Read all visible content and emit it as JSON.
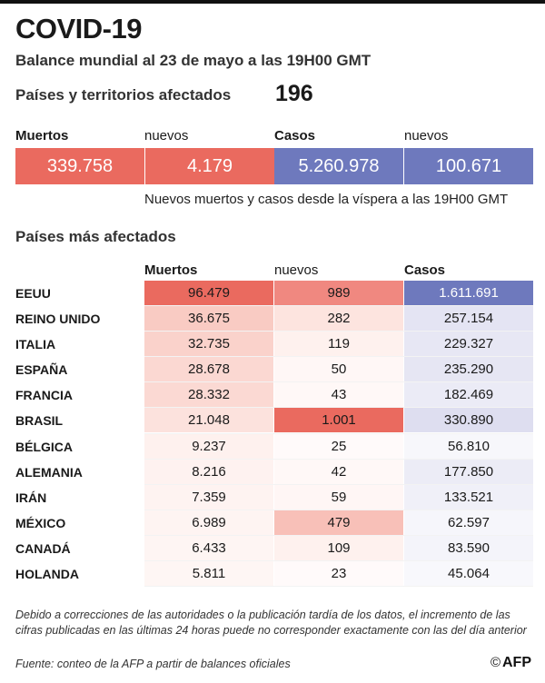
{
  "header": {
    "title": "COVID-19",
    "subtitle": "Balance mundial al 23 de mayo a las 19H00 GMT"
  },
  "countries": {
    "label": "Países y territorios afectados",
    "value": "196"
  },
  "summary": {
    "deaths_label": "Muertos",
    "new_deaths_label": "nuevos",
    "cases_label": "Casos",
    "new_cases_label": "nuevos",
    "deaths": "339.758",
    "new_deaths": "4.179",
    "cases": "5.260.978",
    "new_cases": "100.671",
    "note": "Nuevos muertos y casos desde la víspera a las 19H00 GMT"
  },
  "colors": {
    "deaths": "#ea6a5f",
    "cases": "#6e79bd"
  },
  "table": {
    "title": "Países más afectados",
    "headers": {
      "deaths": "Muertos",
      "new": "nuevos",
      "cases": "Casos"
    },
    "rows": [
      {
        "country": "EEUU",
        "deaths": "96.479",
        "new": "989",
        "cases": "1.611.691",
        "deaths_bg": "#ea6a5f",
        "new_bg": "#f08880",
        "cases_bg": "#6e79bd"
      },
      {
        "country": "REINO UNIDO",
        "deaths": "36.675",
        "new": "282",
        "cases": "257.154",
        "deaths_bg": "#f9cbc3",
        "new_bg": "#fde4df",
        "cases_bg": "#e4e4f3"
      },
      {
        "country": "ITALIA",
        "deaths": "32.735",
        "new": "119",
        "cases": "229.327",
        "deaths_bg": "#fad2cb",
        "new_bg": "#fef1ee",
        "cases_bg": "#e7e7f4"
      },
      {
        "country": "ESPAÑA",
        "deaths": "28.678",
        "new": "50",
        "cases": "235.290",
        "deaths_bg": "#fbd8d2",
        "new_bg": "#fff7f6",
        "cases_bg": "#e6e6f3"
      },
      {
        "country": "FRANCIA",
        "deaths": "28.332",
        "new": "43",
        "cases": "182.469",
        "deaths_bg": "#fbd9d3",
        "new_bg": "#fff8f7",
        "cases_bg": "#ebebf6"
      },
      {
        "country": "BRASIL",
        "deaths": "21.048",
        "new": "1.001",
        "cases": "330.890",
        "deaths_bg": "#fce2dd",
        "new_bg": "#ea6a5f",
        "cases_bg": "#dedef0"
      },
      {
        "country": "BÉLGICA",
        "deaths": "9.237",
        "new": "25",
        "cases": "56.810",
        "deaths_bg": "#fef1ee",
        "new_bg": "#fffafa",
        "cases_bg": "#f7f7fb"
      },
      {
        "country": "ALEMANIA",
        "deaths": "8.216",
        "new": "42",
        "cases": "177.850",
        "deaths_bg": "#fef2f0",
        "new_bg": "#fff8f7",
        "cases_bg": "#ececf6"
      },
      {
        "country": "IRÁN",
        "deaths": "7.359",
        "new": "59",
        "cases": "133.521",
        "deaths_bg": "#fef3f1",
        "new_bg": "#fff6f5",
        "cases_bg": "#f0f0f8"
      },
      {
        "country": "MÉXICO",
        "deaths": "6.989",
        "new": "479",
        "cases": "62.597",
        "deaths_bg": "#fef4f2",
        "new_bg": "#f8c0b8",
        "cases_bg": "#f6f6fb"
      },
      {
        "country": "CANADÁ",
        "deaths": "6.433",
        "new": "109",
        "cases": "83.590",
        "deaths_bg": "#fef5f3",
        "new_bg": "#fef1ee",
        "cases_bg": "#f4f4fa"
      },
      {
        "country": "HOLANDA",
        "deaths": "5.811",
        "new": "23",
        "cases": "45.064",
        "deaths_bg": "#fef6f4",
        "new_bg": "#fffafa",
        "cases_bg": "#f8f8fc"
      }
    ]
  },
  "footer": {
    "note": "Debido a correcciones de las autoridades o la publicación tardía de los datos, el incremento de las cifras publicadas en las últimas 24 horas puede no corresponder exactamente con las del día anterior",
    "source": "Fuente: conteo de la AFP a partir de balances oficiales",
    "logo_copy": "©",
    "logo_text": "AFP"
  }
}
